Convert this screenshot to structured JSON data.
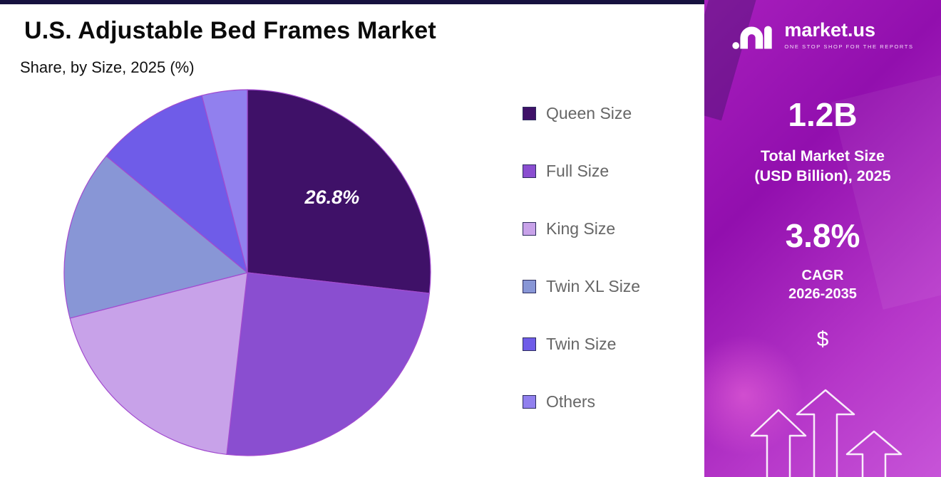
{
  "page": {
    "title": "U.S. Adjustable Bed Frames Market",
    "subtitle": "Share, by Size, 2025 (%)"
  },
  "chart_data": {
    "type": "pie",
    "title": "U.S. Adjustable Bed Frames Market",
    "subtitle": "Share, by Size, 2025 (%)",
    "unit": "%",
    "categories": [
      "Queen Size",
      "Full Size",
      "King Size",
      "Twin XL Size",
      "Twin Size",
      "Others"
    ],
    "values": [
      26.8,
      25.0,
      19.2,
      15.0,
      10.0,
      4.0
    ],
    "colors": [
      "#3F1168",
      "#8A4ED0",
      "#C8A2E9",
      "#8896D6",
      "#6F5CE8",
      "#9180EE"
    ],
    "data_label": {
      "category": "Queen Size",
      "text": "26.8%"
    },
    "legend_position": "right",
    "start_angle": "top",
    "direction": "clockwise"
  },
  "sidebar": {
    "brand": "market.us",
    "tagline": "ONE STOP SHOP FOR THE REPORTS",
    "stat1_value": "1.2B",
    "stat1_label1": "Total Market Size",
    "stat1_label2": "(USD Billion), 2025",
    "stat2_value": "3.8%",
    "stat2_label1": "CAGR",
    "stat2_label2": "2026-2035",
    "currency_symbol": "$"
  },
  "colors": {
    "pie_stroke": "#A24BCF",
    "legend_text": "#666666",
    "top_bar": "#17123F",
    "sidebar_gradient_start": "#A81FBD",
    "sidebar_gradient_end": "#C754D8"
  }
}
